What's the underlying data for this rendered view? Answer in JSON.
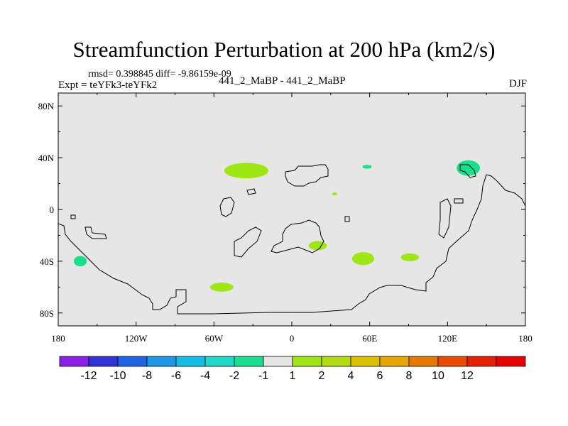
{
  "chart_data": {
    "type": "heatmap",
    "title": "Streamfunction Perturbation at 200 hPa (km2/s)",
    "stats": "rmsd= 0.398845 diff= -9.86159e-09",
    "experiment": "Expt = teYFk3-teYFk2",
    "case": "441_2_MaBP - 441_2_MaBP",
    "season": "DJF",
    "xlim": [
      -180,
      180
    ],
    "ylim": [
      -90,
      90
    ],
    "x_ticks": [
      {
        "value": -180,
        "label": "180"
      },
      {
        "value": -120,
        "label": "120W"
      },
      {
        "value": -60,
        "label": "60W"
      },
      {
        "value": 0,
        "label": "0"
      },
      {
        "value": 60,
        "label": "60E"
      },
      {
        "value": 120,
        "label": "120E"
      },
      {
        "value": 180,
        "label": "180"
      }
    ],
    "y_ticks": [
      {
        "value": 80,
        "label": "80N"
      },
      {
        "value": 40,
        "label": "40N"
      },
      {
        "value": 0,
        "label": "0"
      },
      {
        "value": -40,
        "label": "40S"
      },
      {
        "value": -80,
        "label": "80S"
      }
    ],
    "colorbar": {
      "colors": [
        "#8c1fe6",
        "#3232d9",
        "#1f64e6",
        "#1e96e6",
        "#12bee2",
        "#1ed9c8",
        "#16e08e",
        "#e6e6e6",
        "#9ee614",
        "#b4dc14",
        "#dcbe00",
        "#e6a500",
        "#e67800",
        "#e64b00",
        "#e61e00",
        "#e60000"
      ],
      "labels": [
        "-12",
        "-10",
        "-8",
        "-6",
        "-4",
        "-2",
        "-1",
        "1",
        "2",
        "4",
        "6",
        "8",
        "10",
        "12"
      ]
    },
    "anomalies": [
      {
        "lon": -35,
        "lat": 30,
        "rlon": 17,
        "rlat": 6,
        "level": "2",
        "color": "#9ee614"
      },
      {
        "lon": -54,
        "lat": -60,
        "rlon": 9,
        "rlat": 3.5,
        "level": "2",
        "color": "#9ee614"
      },
      {
        "lon": 20,
        "lat": -28,
        "rlon": 7,
        "rlat": 3.5,
        "level": "2",
        "color": "#9ee614"
      },
      {
        "lon": 55,
        "lat": -38,
        "rlon": 8.5,
        "rlat": 5,
        "level": "2",
        "color": "#9ee614"
      },
      {
        "lon": 91,
        "lat": -37,
        "rlon": 7,
        "rlat": 3,
        "level": "2",
        "color": "#9ee614"
      },
      {
        "lon": 33,
        "lat": 12,
        "rlon": 2,
        "rlat": 1,
        "level": "2",
        "color": "#9ee614"
      },
      {
        "lon": 58,
        "lat": 33,
        "rlon": 3.5,
        "rlat": 1.5,
        "level": "-1",
        "color": "#16e08e"
      },
      {
        "lon": 136,
        "lat": 32,
        "rlon": 9,
        "rlat": 6,
        "level": "-1",
        "color": "#16e08e"
      },
      {
        "lon": -163,
        "lat": -40,
        "rlon": 5,
        "rlat": 4,
        "level": "-1",
        "color": "#16e08e"
      }
    ]
  }
}
